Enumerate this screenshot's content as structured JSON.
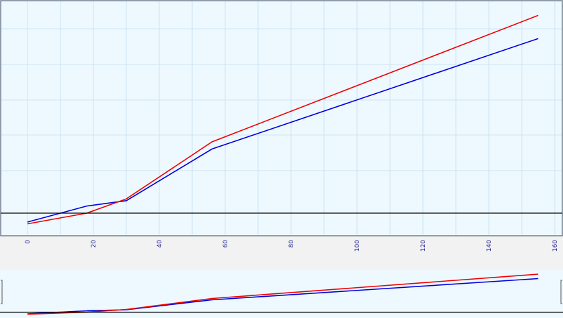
{
  "chart_data": {
    "type": "line",
    "xlim": [
      -8,
      162
    ],
    "x_ticks": [
      0,
      20,
      40,
      60,
      80,
      100,
      120,
      140,
      160
    ],
    "x_tick_labels": [
      "0",
      "20",
      "40",
      "60",
      "80",
      "100",
      "120",
      "140",
      "160"
    ],
    "grid": true,
    "colors": {
      "plot_background": "#eef8ff",
      "grid": "#cfe3f2",
      "baseline": "#000000",
      "page_background": "#f2f2f2"
    },
    "series": [
      {
        "color": "#0000dd",
        "points": [
          [
            0,
            -0.25
          ],
          [
            18,
            0.2
          ],
          [
            30,
            0.35
          ],
          [
            56,
            1.8
          ],
          [
            155,
            4.9
          ]
        ]
      },
      {
        "color": "#ee0000",
        "points": [
          [
            0,
            -0.3
          ],
          [
            18,
            0.0
          ],
          [
            30,
            0.4
          ],
          [
            56,
            2.0
          ],
          [
            155,
            5.55
          ]
        ]
      }
    ]
  }
}
